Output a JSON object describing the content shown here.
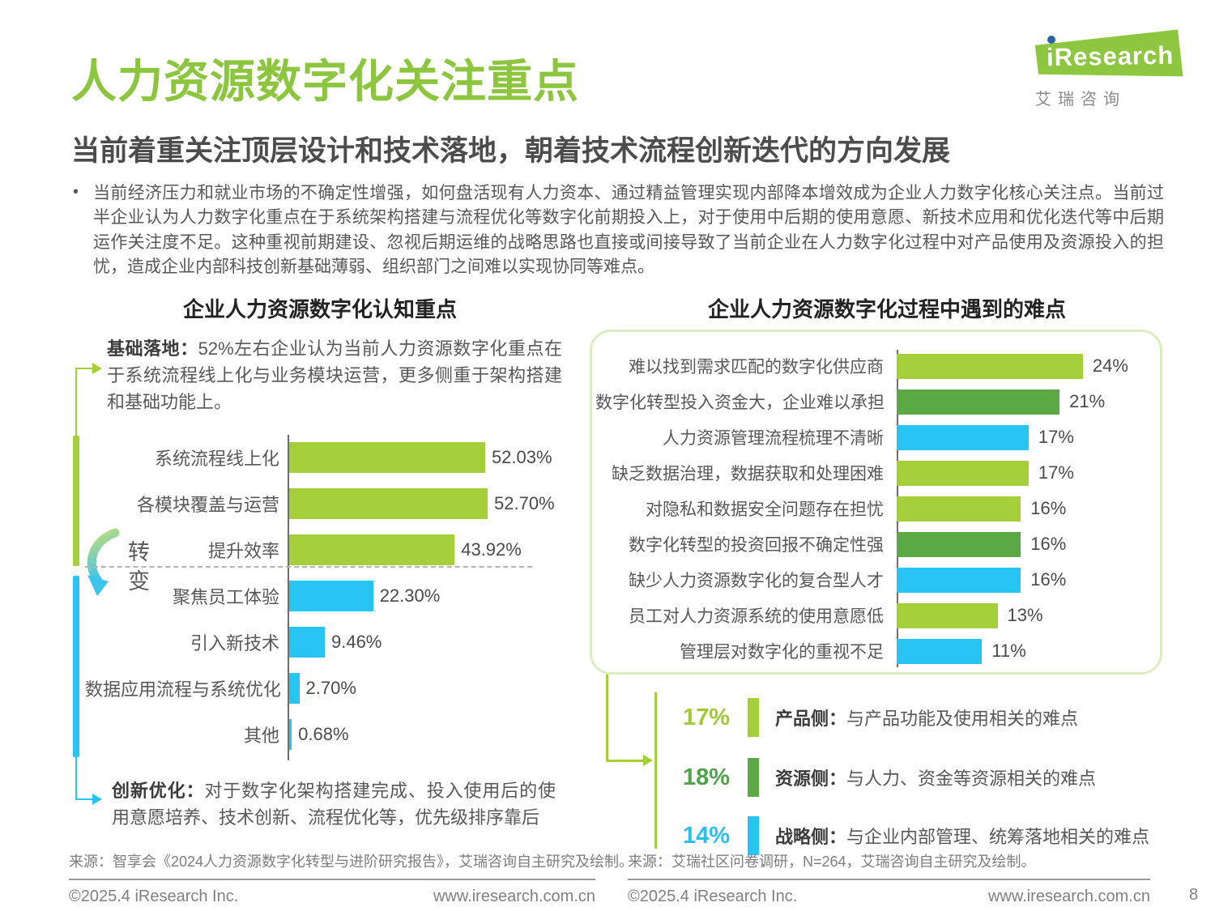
{
  "colors": {
    "light_green": "#a5cf39",
    "dark_green": "#5aa945",
    "blue": "#29c5f2",
    "title_green": "#8cc63f"
  },
  "header": {
    "title": "人力资源数字化关注重点",
    "subtitle": "当前着重关注顶层设计和技术落地，朝着技术流程创新迭代的方向发展",
    "bullet": "当前经济压力和就业市场的不确定性增强，如何盘活现有人力资本、通过精益管理实现内部降本增效成为企业人力数字化核心关注点。当前过半企业认为人力数字化重点在于系统架构搭建与流程优化等数字化前期投入上，对于使用中后期的使用意愿、新技术应用和优化迭代等中后期运作关注度不足。这种重视前期建设、忽视后期运维的战略思路也直接或间接导致了当前企业在人力数字化过程中对产品使用及资源投入的担忧，造成企业内部科技创新基础薄弱、组织部门之间难以实现协同等难点。"
  },
  "logo": {
    "brand": "iResearch",
    "cn": "艾瑞咨询"
  },
  "chart_data": [
    {
      "type": "bar",
      "orientation": "horizontal",
      "title": "企业人力资源数字化认知重点",
      "categories": [
        "系统流程线上化",
        "各模块覆盖与运营",
        "提升效率",
        "聚焦员工体验",
        "引入新技术",
        "数据应用流程与系统优化",
        "其他"
      ],
      "values": [
        52.03,
        52.7,
        43.92,
        22.3,
        9.46,
        2.7,
        0.68
      ],
      "value_labels": [
        "52.03%",
        "52.70%",
        "43.92%",
        "22.30%",
        "9.46%",
        "2.70%",
        "0.68%"
      ],
      "bar_colors": [
        "green",
        "green",
        "green",
        "blue",
        "blue",
        "blue",
        "blue"
      ],
      "xlim": [
        0,
        55
      ],
      "grid": false,
      "annotations": {
        "top_lead": "基础落地：",
        "top_text": "52%左右企业认为当前人力资源数字化重点在于系统流程线上化与业务模块运营，更多侧重于架构搭建和基础功能上。",
        "transition_1": "转",
        "transition_2": "变",
        "bottom_lead": "创新优化：",
        "bottom_text": "对于数字化架构搭建完成、投入使用后的使用意愿培养、技术创新、流程优化等，优先级排序靠后"
      },
      "source": "来源：智享会《2024人力资源数字化转型与进阶研究报告》，艾瑞咨询自主研究及绘制。"
    },
    {
      "type": "bar",
      "orientation": "horizontal",
      "title": "企业人力资源数字化过程中遇到的难点",
      "categories": [
        "难以找到需求匹配的数字化供应商",
        "数字化转型投入资金大，企业难以承担",
        "人力资源管理流程梳理不清晰",
        "缺乏数据治理，数据获取和处理困难",
        "对隐私和数据安全问题存在担忧",
        "数字化转型的投资回报不确定性强",
        "缺少人力资源数字化的复合型人才",
        "员工对人力资源系统的使用意愿低",
        "管理层对数字化的重视不足"
      ],
      "values": [
        24,
        21,
        17,
        17,
        16,
        16,
        16,
        13,
        11
      ],
      "value_labels": [
        "24%",
        "21%",
        "17%",
        "17%",
        "16%",
        "16%",
        "16%",
        "13%",
        "11%"
      ],
      "bar_colors": [
        "green",
        "dark-green",
        "blue",
        "green",
        "green",
        "dark-green",
        "blue",
        "green",
        "blue"
      ],
      "xlim": [
        0,
        26
      ],
      "grid": false,
      "legend": [
        {
          "pct": "17%",
          "name": "产品侧：",
          "desc": "与产品功能及使用相关的难点",
          "color": "green"
        },
        {
          "pct": "18%",
          "name": "资源侧：",
          "desc": "与人力、资金等资源相关的难点",
          "color": "dark-green"
        },
        {
          "pct": "14%",
          "name": "战略侧：",
          "desc": "与企业内部管理、统筹落地相关的难点",
          "color": "blue"
        }
      ],
      "source": "来源：艾瑞社区问卷调研，N=264，艾瑞咨询自主研究及绘制。"
    }
  ],
  "footer": {
    "copyright": "©2025.4 iResearch Inc.",
    "url": "www.iresearch.com.cn",
    "page": "8"
  }
}
